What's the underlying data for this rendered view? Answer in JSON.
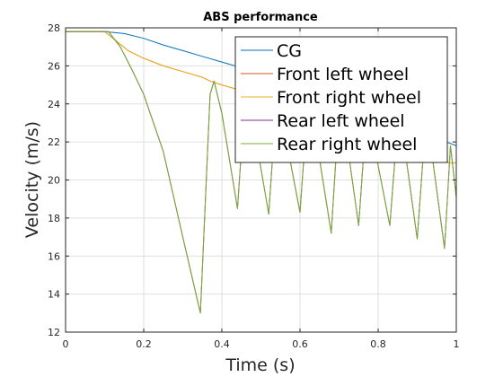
{
  "chart_data": {
    "type": "line",
    "title": "ABS performance",
    "xlabel": "Time (s)",
    "ylabel": "Velocity (m/s)",
    "xlim": [
      0,
      1
    ],
    "ylim": [
      12,
      28
    ],
    "xticks": [
      0,
      0.2,
      0.4,
      0.6,
      0.8,
      1
    ],
    "yticks": [
      12,
      14,
      16,
      18,
      20,
      22,
      24,
      26,
      28
    ],
    "grid": true,
    "legend_position": "top-right",
    "series": [
      {
        "name": "CG",
        "color": "#0072BD",
        "x": [
          0,
          0.1,
          0.15,
          0.2,
          0.25,
          0.3,
          0.35,
          0.4,
          0.45,
          0.5,
          0.55,
          0.6,
          0.65,
          0.7,
          0.75,
          0.8,
          0.85,
          0.9,
          0.95,
          1.0
        ],
        "y": [
          27.8,
          27.8,
          27.7,
          27.45,
          27.1,
          26.8,
          26.5,
          26.2,
          25.9,
          25.6,
          25.3,
          25.0,
          24.6,
          24.2,
          23.8,
          23.4,
          23.0,
          22.6,
          22.2,
          21.8
        ]
      },
      {
        "name": "Front left wheel",
        "color": "#D95319",
        "x": [
          0,
          0.1,
          0.13,
          0.16,
          0.2,
          0.25,
          0.3,
          0.35,
          0.37,
          0.4,
          0.45,
          0.5,
          0.55,
          0.6,
          0.65,
          0.7,
          0.75,
          0.8,
          0.85,
          0.9,
          0.95,
          0.97,
          0.98,
          1.0
        ],
        "y": [
          27.8,
          27.8,
          27.3,
          26.8,
          26.4,
          26.0,
          25.7,
          25.4,
          25.2,
          25.0,
          24.7,
          24.4,
          24.1,
          23.8,
          23.5,
          23.2,
          22.9,
          22.6,
          22.3,
          22.0,
          21.7,
          21.3,
          20.9,
          20.9
        ]
      },
      {
        "name": "Front right wheel",
        "color": "#EDB120",
        "x": [
          0,
          0.1,
          0.13,
          0.16,
          0.2,
          0.25,
          0.3,
          0.35,
          0.37,
          0.4,
          0.45,
          0.5,
          0.55,
          0.6,
          0.65,
          0.7,
          0.75,
          0.8,
          0.85,
          0.9,
          0.95,
          0.97,
          0.98,
          1.0
        ],
        "y": [
          27.8,
          27.8,
          27.3,
          26.8,
          26.4,
          26.0,
          25.7,
          25.4,
          25.2,
          25.0,
          24.7,
          24.4,
          24.1,
          23.8,
          23.5,
          23.2,
          22.9,
          22.6,
          22.3,
          22.0,
          21.7,
          21.3,
          20.9,
          20.9
        ]
      },
      {
        "name": "Rear left wheel",
        "color": "#7E2F8E",
        "x": [
          0,
          0.11,
          0.14,
          0.17,
          0.2,
          0.25,
          0.3,
          0.345,
          0.37,
          0.38,
          0.4,
          0.44,
          0.46,
          0.48,
          0.52,
          0.54,
          0.56,
          0.6,
          0.62,
          0.64,
          0.68,
          0.7,
          0.72,
          0.75,
          0.77,
          0.79,
          0.83,
          0.85,
          0.87,
          0.9,
          0.92,
          0.94,
          0.97,
          0.985,
          1.0
        ],
        "y": [
          27.8,
          27.8,
          27.0,
          25.8,
          24.5,
          21.5,
          17.0,
          13.0,
          24.5,
          25.2,
          23.5,
          18.5,
          24.6,
          23.0,
          18.2,
          24.3,
          22.6,
          18.3,
          24.1,
          22.4,
          17.2,
          23.8,
          22.0,
          17.6,
          23.4,
          21.8,
          17.6,
          23.0,
          21.4,
          16.9,
          22.6,
          21.0,
          16.4,
          21.8,
          19.1
        ]
      },
      {
        "name": "Rear right wheel",
        "color": "#77AC30",
        "x": [
          0,
          0.11,
          0.14,
          0.17,
          0.2,
          0.25,
          0.3,
          0.345,
          0.37,
          0.38,
          0.4,
          0.44,
          0.46,
          0.48,
          0.52,
          0.54,
          0.56,
          0.6,
          0.62,
          0.64,
          0.68,
          0.7,
          0.72,
          0.75,
          0.77,
          0.79,
          0.83,
          0.85,
          0.87,
          0.9,
          0.92,
          0.94,
          0.97,
          0.985,
          1.0
        ],
        "y": [
          27.8,
          27.8,
          27.0,
          25.8,
          24.5,
          21.5,
          17.0,
          13.0,
          24.5,
          25.2,
          23.5,
          18.5,
          24.6,
          23.0,
          18.2,
          24.3,
          22.6,
          18.3,
          24.1,
          22.4,
          17.2,
          23.8,
          22.0,
          17.6,
          23.4,
          21.8,
          17.6,
          23.0,
          21.4,
          16.9,
          22.6,
          21.0,
          16.4,
          21.8,
          19.1
        ]
      }
    ]
  }
}
